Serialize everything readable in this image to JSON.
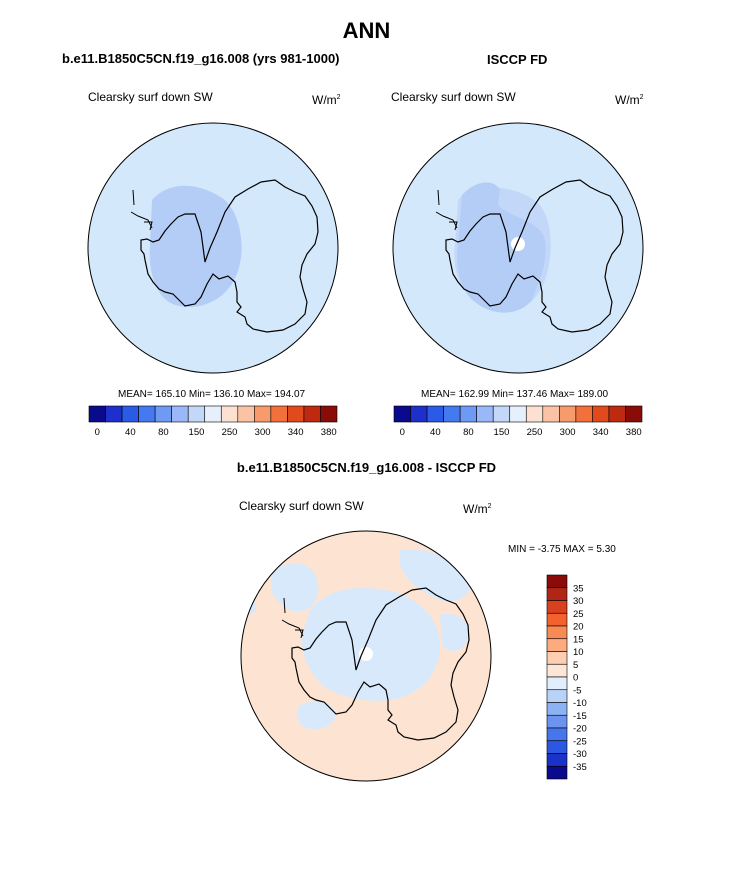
{
  "figure": {
    "title": "ANN",
    "colors": {
      "ocean_light": "#d4e8fb",
      "land_mid": "#b4cdf6",
      "ring_light": "#c3d8f9",
      "diff_positive": "#fde4d2",
      "diff_negative": "#d8e9fb",
      "coast": "#000000"
    }
  },
  "panels": [
    {
      "title": "b.e11.B1850C5CN.f19_g16.008 (yrs 981-1000)",
      "var_label": "Clearsky surf down SW",
      "unit_main": "W/m",
      "unit_sup": "2",
      "stats": "MEAN= 165.10  Min= 136.10  Max= 194.07"
    },
    {
      "title": "ISCCP FD",
      "var_label": "Clearsky surf down SW",
      "unit_main": "W/m",
      "unit_sup": "2",
      "stats": "MEAN= 162.99  Min= 137.46  Max= 189.00"
    }
  ],
  "diff_panel": {
    "title": "b.e11.B1850C5CN.f19_g16.008 - ISCCP FD",
    "var_label": "Clearsky surf down SW",
    "unit_main": "W/m",
    "unit_sup": "2",
    "minmax": "MIN =  -3.75 MAX =   5.30"
  },
  "colorbar_horizontal": {
    "colors": [
      "#0a0a8c",
      "#1f2fcc",
      "#2a5ae6",
      "#4479f0",
      "#6f9af4",
      "#9ab8f8",
      "#c3d8f9",
      "#e6f0fd",
      "#fde0cf",
      "#fbc3a6",
      "#f79a6c",
      "#f2703c",
      "#e04a1c",
      "#bd2a10",
      "#8a0b07"
    ],
    "labels": [
      "0",
      "40",
      "80",
      "150",
      "250",
      "300",
      "340",
      "380"
    ]
  },
  "colorbar_vertical": {
    "colors": [
      "#8a0b07",
      "#b02514",
      "#d9401f",
      "#f3622e",
      "#f88a54",
      "#fbab7d",
      "#fdceb1",
      "#fde6d6",
      "#e1eefc",
      "#b9d3f8",
      "#8db2f3",
      "#6b93ef",
      "#4776ec",
      "#2c57e2",
      "#1b32c8",
      "#0a0a8c"
    ],
    "labels": [
      "35",
      "30",
      "25",
      "20",
      "15",
      "10",
      "5",
      "0",
      "-5",
      "-10",
      "-15",
      "-20",
      "-25",
      "-30",
      "-35"
    ]
  }
}
